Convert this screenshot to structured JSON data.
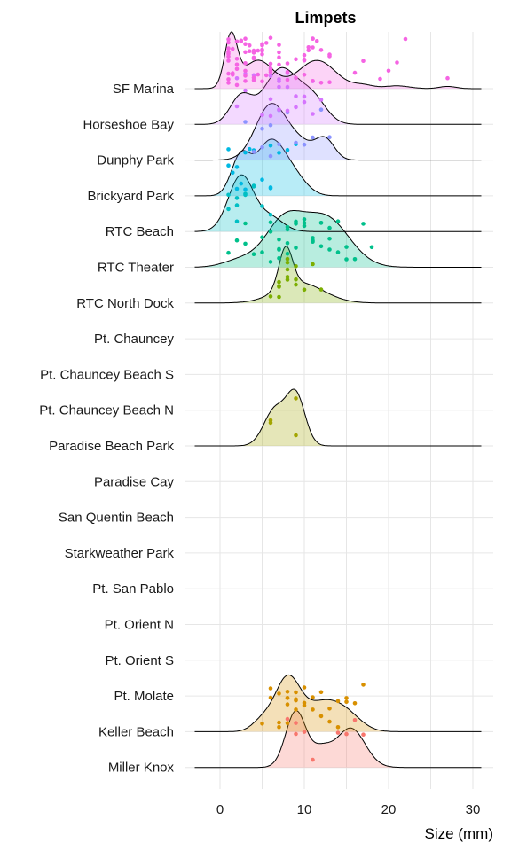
{
  "chart_data": {
    "type": "ridgeline",
    "title": "Limpets",
    "xlabel": "Size (mm)",
    "ylabel": "",
    "xlim": [
      -3,
      32
    ],
    "xticks": [
      0,
      10,
      20,
      30
    ],
    "grid": true,
    "legend": "none",
    "categories": [
      "SF Marina",
      "Horseshoe Bay",
      "Dunphy Park",
      "Brickyard Park",
      "RTC Beach",
      "RTC Theater",
      "RTC North Dock",
      "Pt. Chauncey",
      "Pt. Chauncey Beach S",
      "Pt. Chauncey Beach N",
      "Paradise Beach Park",
      "Paradise Cay",
      "San Quentin Beach",
      "Starkweather Park",
      "Pt. San Pablo",
      "Pt. Orient N",
      "Pt. Orient S",
      "Pt. Molate",
      "Keller Beach",
      "Miller Knox"
    ],
    "series": [
      {
        "category": "SF Marina",
        "color": "#F564E3",
        "range": [
          -3,
          31
        ],
        "peaks": [
          [
            1.3,
            0.9,
            0.75
          ],
          [
            4.5,
            0.5,
            1.8
          ],
          [
            11.5,
            0.5,
            2.2
          ],
          [
            17,
            0.06,
            1.2
          ],
          [
            21,
            0.05,
            1.5
          ],
          [
            27,
            0.04,
            1.0
          ]
        ],
        "points": [
          1,
          1,
          1,
          1,
          1,
          1,
          1,
          1,
          1,
          1,
          1.5,
          1.5,
          1.5,
          2,
          2,
          2,
          2,
          2,
          2.5,
          2.5,
          3,
          3,
          3,
          3,
          3,
          3,
          3,
          3.5,
          3.5,
          4,
          4,
          4,
          4,
          4,
          4,
          4,
          4.5,
          4.5,
          5,
          5,
          5,
          5,
          5,
          5,
          5.5,
          5.5,
          6,
          6,
          6,
          6,
          6,
          7,
          7,
          7,
          7,
          8,
          8,
          8,
          9,
          9,
          10,
          10,
          10,
          10,
          10.5,
          10.5,
          11,
          11,
          11,
          11,
          11.5,
          12,
          12,
          13,
          13,
          13,
          16,
          17,
          19,
          20,
          21,
          22,
          27
        ]
      },
      {
        "category": "Horseshoe Bay",
        "color": "#D575FE",
        "range": [
          -3,
          31
        ],
        "peaks": [
          [
            2.5,
            0.5,
            1.3
          ],
          [
            7.2,
            1.0,
            2.0
          ],
          [
            11,
            0.45,
            1.6
          ]
        ],
        "points": [
          2,
          2,
          3,
          3,
          4,
          5,
          6,
          6,
          6,
          7,
          7,
          7,
          7,
          8,
          8,
          8,
          9,
          9,
          10,
          10,
          11,
          11,
          12
        ]
      },
      {
        "category": "Dunphy Park",
        "color": "#8B93FF",
        "range": [
          -3,
          31
        ],
        "peaks": [
          [
            6,
            1.0,
            1.8
          ],
          [
            12.5,
            0.35,
            1.1
          ],
          [
            9.5,
            0.3,
            1.8
          ]
        ],
        "points": [
          3,
          4,
          5,
          5,
          6,
          6,
          7,
          7,
          8,
          9,
          10,
          11,
          12,
          13
        ]
      },
      {
        "category": "Brickyard Park",
        "color": "#00B9E3",
        "range": [
          -3,
          31
        ],
        "peaks": [
          [
            2.4,
            0.8,
            1.1
          ],
          [
            6,
            1.2,
            1.8
          ],
          [
            9,
            0.3,
            1.5
          ]
        ],
        "points": [
          1,
          1,
          1.5,
          2,
          2,
          2.5,
          3,
          3,
          3.5,
          4,
          5,
          6,
          6,
          6,
          7,
          8,
          9
        ]
      },
      {
        "category": "RTC Beach",
        "color": "#00BFC4",
        "range": [
          -3,
          31
        ],
        "peaks": [
          [
            2.5,
            1.0,
            1.5
          ],
          [
            6,
            0.25,
            1.5
          ]
        ],
        "points": [
          1,
          1,
          2,
          2,
          2,
          3,
          3,
          4,
          4,
          5,
          6
        ]
      },
      {
        "category": "RTC Theater",
        "color": "#00C08B",
        "range": [
          -3,
          31
        ],
        "peaks": [
          [
            7.5,
            0.45,
            2.2
          ],
          [
            12.5,
            0.52,
            2.8
          ],
          [
            2.5,
            0.08,
            2.0
          ]
        ],
        "points": [
          1,
          2,
          3,
          3,
          4,
          5,
          5,
          6,
          6,
          6,
          7,
          7,
          7,
          7,
          8,
          8,
          8,
          8,
          9,
          9,
          9,
          10,
          10,
          10,
          11,
          11,
          11,
          12,
          12,
          12,
          13,
          13,
          13,
          14,
          14,
          15,
          15,
          16,
          17,
          18
        ]
      },
      {
        "category": "RTC North Dock",
        "color": "#7CAE00",
        "range": [
          -3,
          31
        ],
        "peaks": [
          [
            7.8,
            1.1,
            0.8
          ],
          [
            9.5,
            0.55,
            2.8
          ]
        ],
        "points": [
          6,
          7,
          7,
          7,
          7,
          8,
          8,
          8,
          8,
          8,
          9,
          9,
          9,
          10,
          11,
          12
        ]
      },
      {
        "category": "Pt. Chauncey",
        "color": "#A3A500",
        "range": [
          0,
          0
        ],
        "peaks": [],
        "points": []
      },
      {
        "category": "Pt. Chauncey Beach S",
        "color": "#A3A500",
        "range": [
          0,
          0
        ],
        "peaks": [],
        "points": []
      },
      {
        "category": "Pt. Chauncey Beach N",
        "color": "#A3A500",
        "range": [
          0,
          0
        ],
        "peaks": [],
        "points": []
      },
      {
        "category": "Paradise Beach Park",
        "color": "#A3A500",
        "range": [
          -3,
          31
        ],
        "peaks": [
          [
            6.5,
            0.72,
            1.3
          ],
          [
            9,
            1.0,
            1.1
          ]
        ],
        "points": [
          6,
          6,
          9,
          9
        ]
      },
      {
        "category": "Paradise Cay",
        "color": "#D89000",
        "range": [
          0,
          0
        ],
        "peaks": [],
        "points": []
      },
      {
        "category": "San Quentin Beach",
        "color": "#D89000",
        "range": [
          0,
          0
        ],
        "peaks": [],
        "points": []
      },
      {
        "category": "Starkweather Park",
        "color": "#D89000",
        "range": [
          0,
          0
        ],
        "peaks": [],
        "points": []
      },
      {
        "category": "Pt. San Pablo",
        "color": "#D89000",
        "range": [
          0,
          0
        ],
        "peaks": [],
        "points": []
      },
      {
        "category": "Pt. Orient N",
        "color": "#D89000",
        "range": [
          0,
          0
        ],
        "peaks": [],
        "points": []
      },
      {
        "category": "Pt. Orient S",
        "color": "#D89000",
        "range": [
          0,
          0
        ],
        "peaks": [],
        "points": []
      },
      {
        "category": "Pt. Molate",
        "color": "#D89000",
        "range": [
          0,
          0
        ],
        "peaks": [],
        "points": []
      },
      {
        "category": "Keller Beach",
        "color": "#D89000",
        "range": [
          -3,
          31
        ],
        "peaks": [
          [
            8,
            1.0,
            1.5
          ],
          [
            12,
            0.5,
            2.0
          ],
          [
            15,
            0.3,
            1.8
          ],
          [
            5,
            0.2,
            1.2
          ]
        ],
        "points": [
          5,
          6,
          6,
          7,
          7,
          7,
          8,
          8,
          8,
          8,
          8,
          9,
          9,
          9,
          9,
          10,
          10,
          10,
          11,
          11,
          12,
          12,
          13,
          13,
          14,
          14,
          15,
          15,
          16,
          17
        ]
      },
      {
        "category": "Miller Knox",
        "color": "#F8766D",
        "range": [
          -3,
          31
        ],
        "peaks": [
          [
            9,
            1.0,
            1.2
          ],
          [
            15.5,
            0.7,
            1.7
          ],
          [
            12,
            0.3,
            1.2
          ]
        ],
        "points": [
          8,
          9,
          9,
          10,
          11,
          14,
          15,
          16,
          17
        ]
      }
    ]
  }
}
